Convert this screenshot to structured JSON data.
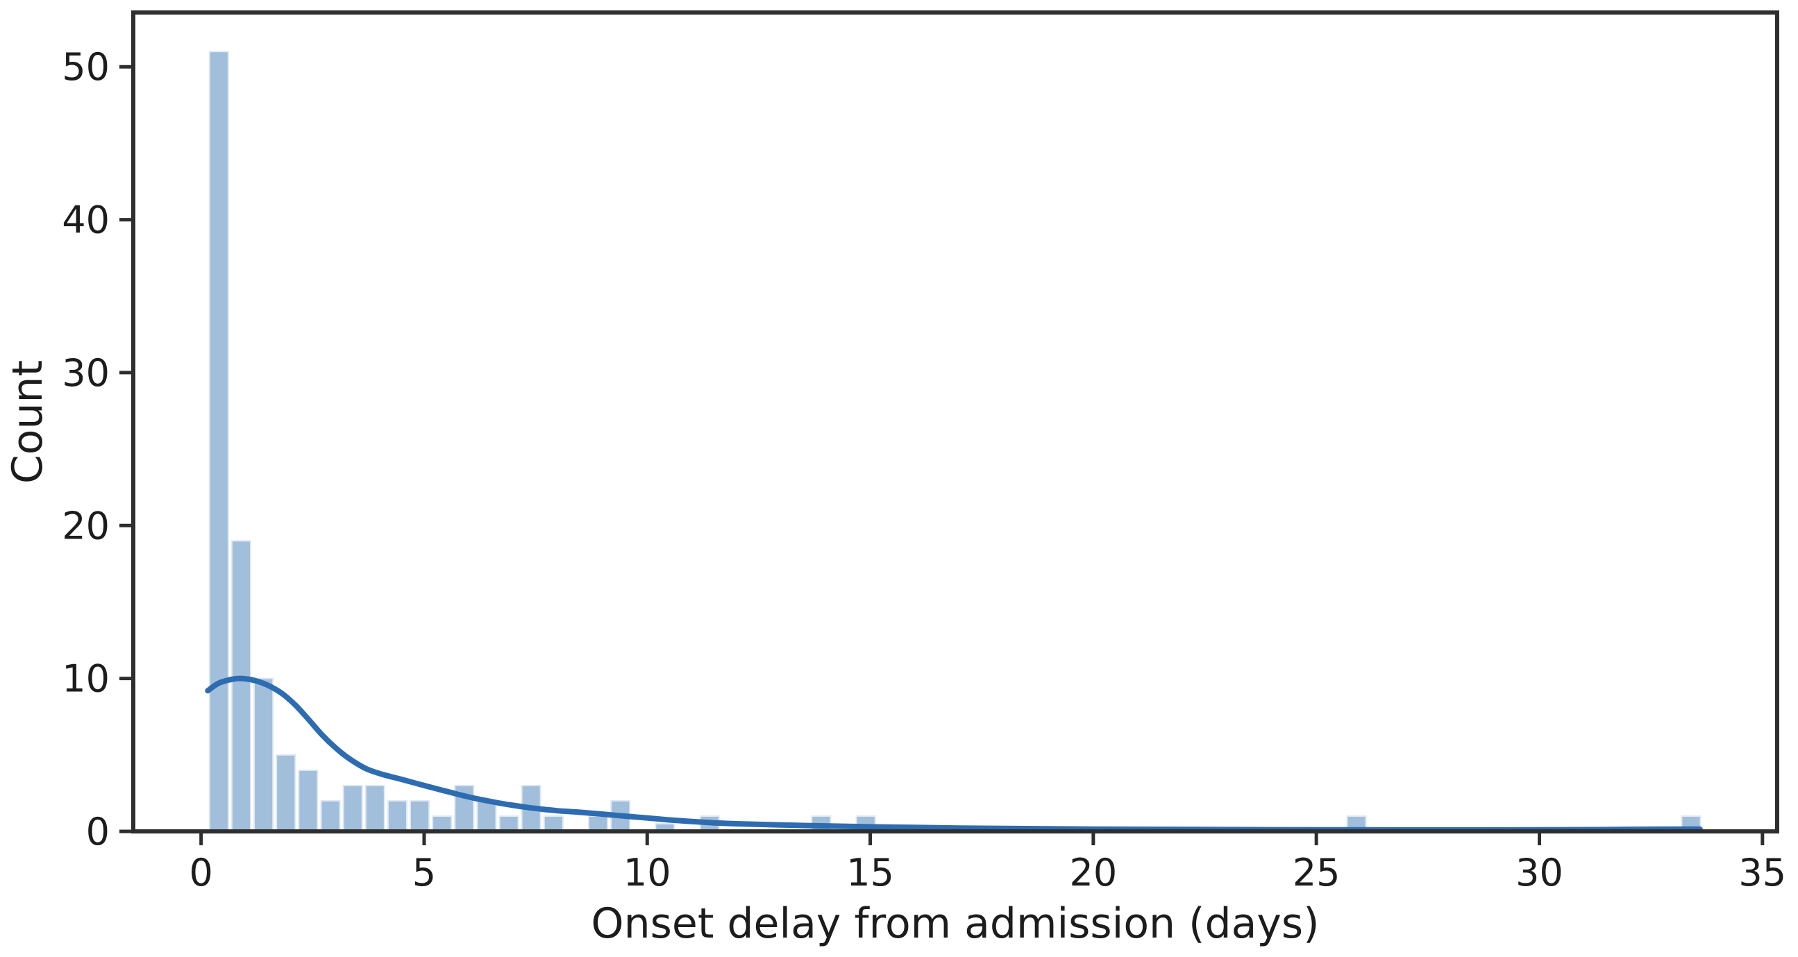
{
  "chart_data": {
    "type": "bar",
    "subtype": "histogram_with_kde",
    "title": "",
    "xlabel": "Onset delay from admission (days)",
    "ylabel": "Count",
    "x_ticks": [
      0,
      5,
      10,
      15,
      20,
      25,
      30,
      35
    ],
    "y_ticks": [
      0,
      10,
      20,
      30,
      40,
      50
    ],
    "xlim": [
      -1.52,
      35.33
    ],
    "ylim": [
      0,
      53.55
    ],
    "grid": false,
    "legend": null,
    "bin_width": 0.5,
    "bars": [
      {
        "x0": 0.15,
        "count": 51
      },
      {
        "x0": 0.65,
        "count": 19
      },
      {
        "x0": 1.15,
        "count": 10
      },
      {
        "x0": 1.65,
        "count": 5
      },
      {
        "x0": 2.15,
        "count": 4
      },
      {
        "x0": 2.65,
        "count": 2
      },
      {
        "x0": 3.15,
        "count": 3
      },
      {
        "x0": 3.65,
        "count": 3
      },
      {
        "x0": 4.15,
        "count": 2
      },
      {
        "x0": 4.65,
        "count": 2
      },
      {
        "x0": 5.15,
        "count": 1
      },
      {
        "x0": 5.65,
        "count": 3
      },
      {
        "x0": 6.15,
        "count": 2
      },
      {
        "x0": 6.65,
        "count": 1
      },
      {
        "x0": 7.15,
        "count": 3
      },
      {
        "x0": 7.65,
        "count": 1
      },
      {
        "x0": 8.65,
        "count": 1
      },
      {
        "x0": 9.15,
        "count": 2
      },
      {
        "x0": 10.15,
        "count": 0.5
      },
      {
        "x0": 11.15,
        "count": 1
      },
      {
        "x0": 13.65,
        "count": 1
      },
      {
        "x0": 14.65,
        "count": 1
      },
      {
        "x0": 25.65,
        "count": 1
      },
      {
        "x0": 33.15,
        "count": 1
      }
    ],
    "kde_curve": {
      "name": "kde-density-estimate",
      "points": [
        [
          0.15,
          9.2
        ],
        [
          0.4,
          9.7
        ],
        [
          0.7,
          9.95
        ],
        [
          0.9,
          10.0
        ],
        [
          1.2,
          9.87
        ],
        [
          1.5,
          9.55
        ],
        [
          1.8,
          9.05
        ],
        [
          2.1,
          8.3
        ],
        [
          2.4,
          7.35
        ],
        [
          2.7,
          6.35
        ],
        [
          3.0,
          5.5
        ],
        [
          3.3,
          4.8
        ],
        [
          3.7,
          4.1
        ],
        [
          4.1,
          3.7
        ],
        [
          4.5,
          3.4
        ],
        [
          5.0,
          3.0
        ],
        [
          5.5,
          2.62
        ],
        [
          6.0,
          2.25
        ],
        [
          6.5,
          1.95
        ],
        [
          7.0,
          1.7
        ],
        [
          7.5,
          1.5
        ],
        [
          8.0,
          1.35
        ],
        [
          8.5,
          1.25
        ],
        [
          9.0,
          1.13
        ],
        [
          9.5,
          1.0
        ],
        [
          10.0,
          0.88
        ],
        [
          10.5,
          0.75
        ],
        [
          11.0,
          0.65
        ],
        [
          11.5,
          0.56
        ],
        [
          12.0,
          0.5
        ],
        [
          13.0,
          0.42
        ],
        [
          14.0,
          0.36
        ],
        [
          15.0,
          0.3
        ],
        [
          16.0,
          0.26
        ],
        [
          17.0,
          0.22
        ],
        [
          18.0,
          0.19
        ],
        [
          19.0,
          0.17
        ],
        [
          20.0,
          0.15
        ],
        [
          22.0,
          0.13
        ],
        [
          24.0,
          0.11
        ],
        [
          26.0,
          0.1
        ],
        [
          28.0,
          0.09
        ],
        [
          30.0,
          0.1
        ],
        [
          31.5,
          0.12
        ],
        [
          32.5,
          0.14
        ],
        [
          33.6,
          0.15
        ]
      ]
    },
    "colors": {
      "bar_fill": "#a1bfdb",
      "bar_edge": "#dfe9f4",
      "kde_line": "#2e6cb2",
      "spine": "#2e2e2e",
      "tick_label": "#1c1c1c",
      "background": "#ffffff"
    }
  }
}
